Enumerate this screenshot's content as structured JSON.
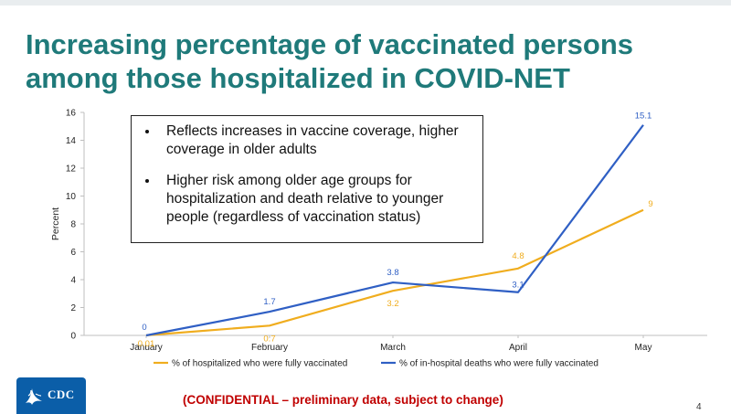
{
  "slide": {
    "title_line1": "Increasing percentage of vaccinated persons",
    "title_line2": "among those hospitalized in COVID-NET",
    "bullets": [
      "Reflects increases in vaccine coverage, higher coverage in older adults",
      "Higher risk among older age groups for hospitalization and death relative to younger people (regardless of vaccination status)"
    ],
    "footer_note": "(CONFIDENTIAL – preliminary data, subject to change)",
    "page_number": "4",
    "logo_text": "CDC",
    "logo_icon": "hhs-eagle-icon"
  },
  "chart_data": {
    "type": "line",
    "categories": [
      "January",
      "February",
      "March",
      "April",
      "May"
    ],
    "ylabel": "Percent",
    "ylim": [
      0,
      16
    ],
    "yticks": [
      0,
      2,
      4,
      6,
      8,
      10,
      12,
      14,
      16
    ],
    "grid": false,
    "legend_position": "bottom",
    "series": [
      {
        "name": "% of hospitalized who were fully vaccinated",
        "values": [
          0.01,
          0.7,
          3.2,
          4.8,
          9
        ],
        "labels": [
          "0.01",
          "0.7",
          "3.2",
          "4.8",
          "9"
        ],
        "color": "#f0ad1e"
      },
      {
        "name": "% of in-hospital deaths who were fully vaccinated",
        "values": [
          0,
          1.7,
          3.8,
          3.1,
          15.1
        ],
        "labels": [
          "0",
          "1.7",
          "3.8",
          "3.1",
          "15.1"
        ],
        "color": "#2f5fc4"
      }
    ]
  }
}
